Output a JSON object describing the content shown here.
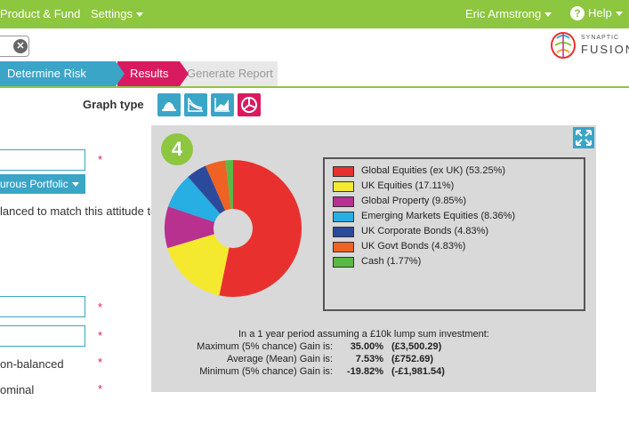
{
  "nav": {
    "product_fund": "Product & Fund",
    "settings": "Settings",
    "user": "Eric Armstrong",
    "help": "Help",
    "help_icon_text": "?"
  },
  "search": {
    "clear_glyph": "✕"
  },
  "brand": {
    "line1": "SYNAPTIC",
    "line2": "FUSION"
  },
  "steps": [
    {
      "label": "Determine Risk Level"
    },
    {
      "label": "Results"
    },
    {
      "label": "Generate Report"
    }
  ],
  "graph": {
    "label": "Graph type",
    "buttons": [
      "distribution-chart",
      "area-chart",
      "line-chart",
      "pie-chart"
    ],
    "active": "pie-chart"
  },
  "form": {
    "dropdown_label": "urous Portfolic",
    "text1": "lanced to match this attitude to",
    "text2": "on-balanced",
    "text3": "ominal",
    "required_mark": "*"
  },
  "risk_badge": "4",
  "chart_data": {
    "type": "pie",
    "categories": [
      "Global Equities (ex UK)",
      "UK Equities",
      "Global Property",
      "Emerging Markets Equities",
      "UK Corporate Bonds",
      "UK Govt Bonds",
      "Cash"
    ],
    "values": [
      53.25,
      17.11,
      9.85,
      8.36,
      4.83,
      4.83,
      1.77
    ],
    "legend_labels": [
      "Global Equities (ex UK) (53.25%)",
      "UK Equities (17.11%)",
      "Global Property (9.85%)",
      "Emerging Markets Equities (8.36%)",
      "UK Corporate Bonds (4.83%)",
      "UK Govt Bonds (4.83%)",
      "Cash (1.77%)"
    ],
    "colors": [
      "#e8312f",
      "#f5e92f",
      "#b8318f",
      "#27aee2",
      "#2c4a9b",
      "#ee6224",
      "#5cb845"
    ],
    "donut": true,
    "legend_position": "right"
  },
  "stats": {
    "heading": "In a 1 year period assuming a £10k lump sum investment:",
    "rows": [
      {
        "label": "Maximum (5% chance) Gain is:",
        "pct": "35.00%",
        "amt": "(£3,500.29)"
      },
      {
        "label": "Average (Mean) Gain is:",
        "pct": "7.53%",
        "amt": "(£752.69)"
      },
      {
        "label": "Minimum (5% chance) Gain is:",
        "pct": "-19.82%",
        "amt": "(-£1,981.54)"
      }
    ]
  }
}
